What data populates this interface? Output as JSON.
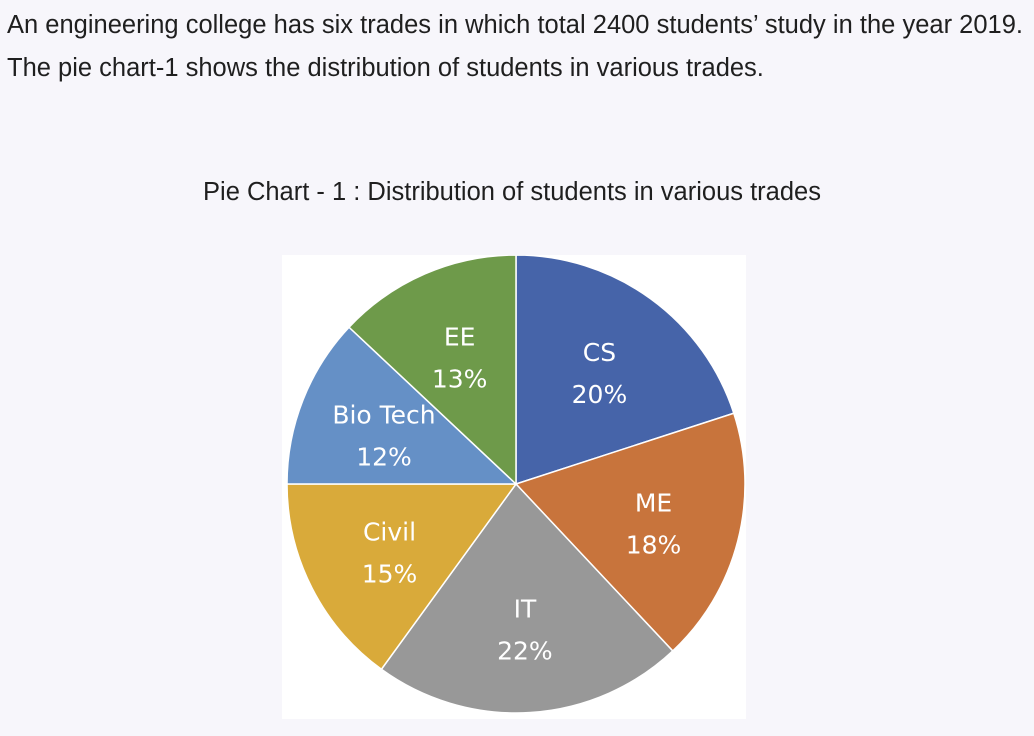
{
  "intro_text": "An engineering college has six trades in which total 2400 students’ study in the year 2019. The pie chart-1 shows the distribution of students in various trades.",
  "chart_data": {
    "type": "pie",
    "title": "Pie Chart - 1 : Distribution of students in various trades",
    "slices": [
      {
        "name": "CS",
        "value": 20,
        "label": "20%",
        "color": "#4664a9"
      },
      {
        "name": "ME",
        "value": 18,
        "label": "18%",
        "color": "#c8743c"
      },
      {
        "name": "IT",
        "value": 22,
        "label": "22%",
        "color": "#989898"
      },
      {
        "name": "Civil",
        "value": 15,
        "label": "15%",
        "color": "#d9aa3a"
      },
      {
        "name": "Bio Tech",
        "value": 12,
        "label": "12%",
        "color": "#6590c6"
      },
      {
        "name": "EE",
        "value": 13,
        "label": "13%",
        "color": "#6e9a4a"
      }
    ]
  }
}
